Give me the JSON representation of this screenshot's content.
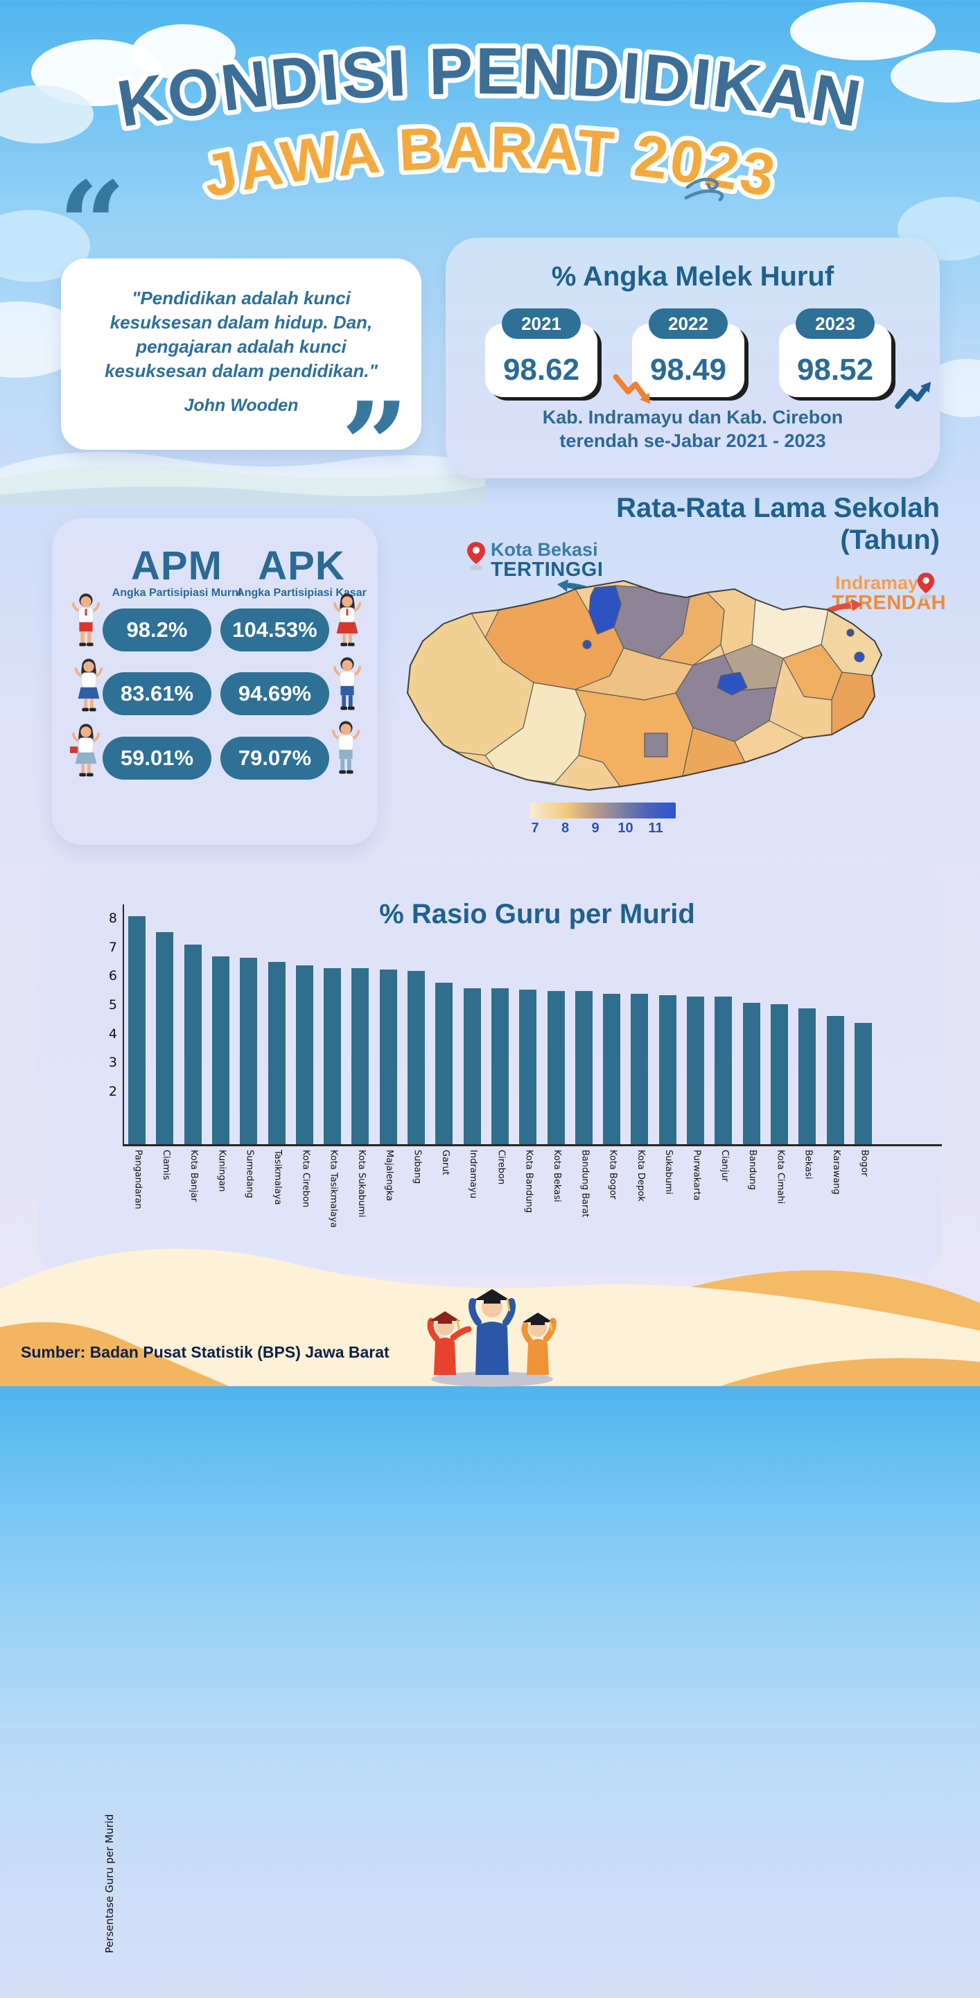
{
  "title": {
    "line1": "KONDISI PENDIDIKAN",
    "line2": "JAWA BARAT 2023"
  },
  "quote": {
    "lines": [
      "\"Pendidikan adalah kunci",
      "kesuksesan dalam hidup. Dan,",
      "pengajaran adalah kunci",
      "kesuksesan dalam pendidikan.\""
    ],
    "author": "John Wooden"
  },
  "literacy": {
    "title": "% Angka Melek Huruf",
    "years": [
      {
        "year": "2021",
        "value": "98.62"
      },
      {
        "year": "2022",
        "value": "98.49"
      },
      {
        "year": "2023",
        "value": "98.52"
      }
    ],
    "caption1": "Kab. Indramayu dan Kab. Cirebon",
    "caption2": "terendah se-Jabar 2021 - 2023"
  },
  "participation": {
    "apm": {
      "title": "APM",
      "subtitle": "Angka Partisipiasi Murni",
      "values": [
        "98.2%",
        "83.61%",
        "59.01%"
      ]
    },
    "apk": {
      "title": "APK",
      "subtitle": "Angka Partisipiasi Kasar",
      "values": [
        "104.53%",
        "94.69%",
        "79.07%"
      ]
    }
  },
  "school_years_map": {
    "title_line1": "Rata-Rata Lama Sekolah",
    "title_line2": "(Tahun)",
    "highest": {
      "name": "Kota Bekasi",
      "label": "TERTINGGI"
    },
    "lowest": {
      "name": "Indramayu",
      "label": "TERENDAH"
    },
    "legend_ticks": [
      "7",
      "8",
      "9",
      "10",
      "11"
    ]
  },
  "chart_data": {
    "type": "bar",
    "title": "% Rasio Guru per Murid",
    "ylabel": "Persentase Guru per Murid",
    "xlabel": "",
    "categories": [
      "Pangandaran",
      "Ciamis",
      "Kota Banjar",
      "Kuningan",
      "Sumedang",
      "Tasikmalaya",
      "Kota Cirebon",
      "Kota Tasikmalaya",
      "Kota Sukabumi",
      "Majalengka",
      "Subang",
      "Garut",
      "Indramayu",
      "Cirebon",
      "Kota Bandung",
      "Kota Bekasi",
      "Bandung Barat",
      "Kota Bogor",
      "Kota Depok",
      "Sukabumi",
      "Purwakarta",
      "Cianjur",
      "Bandung",
      "Kota Cimahi",
      "Bekasi",
      "Karawang",
      "Bogor"
    ],
    "values": [
      8.1,
      7.55,
      7.1,
      6.7,
      6.65,
      6.5,
      6.4,
      6.3,
      6.3,
      6.25,
      6.2,
      5.8,
      5.6,
      5.6,
      5.55,
      5.5,
      5.5,
      5.4,
      5.4,
      5.35,
      5.3,
      5.3,
      5.1,
      5.05,
      4.9,
      4.65,
      4.4
    ],
    "yticks": [
      2,
      3,
      4,
      5,
      6,
      7,
      8
    ],
    "ylim": [
      0.2,
      8.5
    ],
    "grid": false,
    "legend": false
  },
  "icons": {
    "trend_2021_2022": "zigzag-arrow-down",
    "trend_2022_2023": "zigzag-arrow-up",
    "wind": "wind-icon",
    "highest_pin": "location-pin-icon",
    "lowest_pin": "location-pin-icon",
    "students": [
      "student-sd-boy",
      "student-sd-girl",
      "student-smp-girl",
      "student-smp-boy",
      "student-sma-girl",
      "student-sma-boy"
    ]
  },
  "colors": {
    "title_blue": "#3d6e96",
    "title_orange": "#f4a93f",
    "primary_text": "#2b6a94",
    "pill_bg": "#2e7096",
    "bar": "#306e8e",
    "lowest_orange": "#ef8b3d",
    "map_low": "#f8ecd2",
    "map_high": "#2d53c3"
  },
  "footer": {
    "source": "Sumber: Badan Pusat Statistik (BPS) Jawa Barat"
  }
}
